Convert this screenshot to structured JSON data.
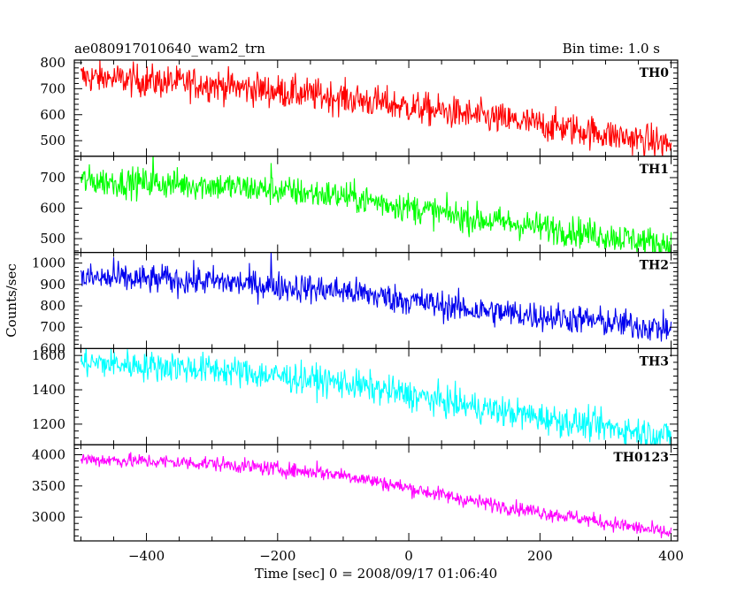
{
  "header": {
    "title": "ae080917010640_wam2_trn",
    "bin_time": "Bin time: 1.0 s"
  },
  "chart_data": {
    "type": "line",
    "xlabel": "Time [sec] 0 = 2008/09/17 01:06:40",
    "ylabel": "Counts/sec",
    "xlim": [
      -510,
      410
    ],
    "x_ticks": [
      -400,
      -200,
      0,
      200,
      400
    ],
    "x_tick_labels": [
      "−400",
      "−200",
      "0",
      "200",
      "400"
    ],
    "x_start": -500,
    "x_end": 400,
    "bin_time": 1.0,
    "panels": [
      {
        "name": "TH0",
        "color": "#ff0000",
        "ylim": [
          440,
          810
        ],
        "y_ticks": [
          500,
          600,
          700,
          800
        ],
        "trend": [
          [
            -500,
            745
          ],
          [
            -300,
            715
          ],
          [
            -100,
            665
          ],
          [
            100,
            595
          ],
          [
            250,
            545
          ],
          [
            400,
            485
          ]
        ],
        "noise": 32,
        "bumps": [
          [
            -460,
            70
          ],
          [
            -300,
            60
          ],
          [
            -230,
            50
          ]
        ]
      },
      {
        "name": "TH1",
        "color": "#00ff00",
        "ylim": [
          455,
          770
        ],
        "y_ticks": [
          500,
          600,
          700
        ],
        "trend": [
          [
            -500,
            690
          ],
          [
            -300,
            675
          ],
          [
            -100,
            640
          ],
          [
            100,
            565
          ],
          [
            250,
            525
          ],
          [
            400,
            480
          ]
        ],
        "noise": 25,
        "bumps": [
          [
            -390,
            70
          ],
          [
            -210,
            50
          ]
        ]
      },
      {
        "name": "TH2",
        "color": "#0000ee",
        "ylim": [
          600,
          1050
        ],
        "y_ticks": [
          600,
          700,
          800,
          900,
          1000
        ],
        "trend": [
          [
            -500,
            930
          ],
          [
            -300,
            915
          ],
          [
            -100,
            870
          ],
          [
            100,
            780
          ],
          [
            250,
            740
          ],
          [
            400,
            690
          ]
        ],
        "noise": 35,
        "bumps": [
          [
            -450,
            110
          ],
          [
            -370,
            100
          ],
          [
            -210,
            110
          ]
        ]
      },
      {
        "name": "TH3",
        "color": "#00ffff",
        "ylim": [
          1080,
          1640
        ],
        "y_ticks": [
          1200,
          1400,
          1600
        ],
        "trend": [
          [
            -500,
            1560
          ],
          [
            -300,
            1520
          ],
          [
            -100,
            1440
          ],
          [
            100,
            1300
          ],
          [
            250,
            1210
          ],
          [
            400,
            1130
          ]
        ],
        "noise": 45,
        "bumps": [
          [
            -360,
            110
          ]
        ]
      },
      {
        "name": "TH0123",
        "color": "#ff00ff",
        "ylim": [
          2620,
          4160
        ],
        "y_ticks": [
          3000,
          3500,
          4000
        ],
        "trend": [
          [
            -500,
            3930
          ],
          [
            -300,
            3860
          ],
          [
            -100,
            3680
          ],
          [
            100,
            3250
          ],
          [
            250,
            3000
          ],
          [
            400,
            2740
          ]
        ],
        "noise": 60,
        "bumps": [
          [
            -140,
            280
          ]
        ]
      }
    ]
  }
}
